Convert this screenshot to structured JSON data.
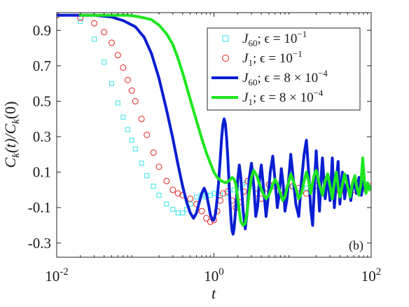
{
  "chart_data": {
    "type": "line",
    "x_scale": "log",
    "xlim": [
      0.01,
      100
    ],
    "ylim": [
      -0.38,
      1.0
    ],
    "grid": false,
    "legend_position": "top-right",
    "panel_label": "(b)",
    "xlabel": "t",
    "ylabel": "C_k(t)/C_k(0)",
    "x_ticks": [
      {
        "value": 0.01,
        "base": "10",
        "exp": "-2"
      },
      {
        "value": 1,
        "base": "10",
        "exp": "0"
      },
      {
        "value": 100,
        "base": "10",
        "exp": "2"
      }
    ],
    "y_ticks": [
      {
        "value": 0.9,
        "label": "0.9"
      },
      {
        "value": 0.7,
        "label": "0.7"
      },
      {
        "value": 0.5,
        "label": "0.5"
      },
      {
        "value": 0.3,
        "label": "0.3"
      },
      {
        "value": 0.1,
        "label": "0.1"
      },
      {
        "value": -0.1,
        "label": "-0.1"
      },
      {
        "value": -0.3,
        "label": "-0.3"
      }
    ],
    "series": [
      {
        "name": "J60; ε = 10^-1",
        "legend": {
          "sym": "J",
          "sub": "60",
          "text": "; ϵ = 10",
          "sup": "−1"
        },
        "style": "marker-square",
        "color": "#33e6e6",
        "points": [
          [
            0.01,
            0.985
          ],
          [
            0.02,
            0.95
          ],
          [
            0.03,
            0.85
          ],
          [
            0.04,
            0.72
          ],
          [
            0.05,
            0.6
          ],
          [
            0.06,
            0.49
          ],
          [
            0.07,
            0.41
          ],
          [
            0.08,
            0.34
          ],
          [
            0.09,
            0.28
          ],
          [
            0.1,
            0.23
          ],
          [
            0.12,
            0.15
          ],
          [
            0.14,
            0.08
          ],
          [
            0.17,
            0.02
          ],
          [
            0.2,
            -0.03
          ],
          [
            0.25,
            -0.08
          ],
          [
            0.3,
            -0.11
          ],
          [
            0.35,
            -0.13
          ],
          [
            0.4,
            -0.13
          ],
          [
            0.45,
            -0.11
          ],
          [
            0.5,
            -0.08
          ],
          [
            0.6,
            -0.04
          ],
          [
            0.7,
            -0.03
          ],
          [
            0.8,
            -0.04
          ],
          [
            0.9,
            -0.03
          ],
          [
            1.0,
            -0.02
          ],
          [
            1.2,
            -0.03
          ],
          [
            1.5,
            -0.02
          ],
          [
            1.8,
            0.0
          ],
          [
            2.0,
            0.01
          ],
          [
            2.3,
            0.03
          ],
          [
            2.6,
            0.04
          ],
          [
            3.0,
            0.02
          ],
          [
            3.5,
            0.0
          ],
          [
            4.0,
            0.02
          ],
          [
            5.0,
            0.03
          ],
          [
            6.0,
            0.02
          ],
          [
            8.0,
            0.01
          ],
          [
            10,
            0.02
          ],
          [
            15,
            0.01
          ],
          [
            20,
            0.0
          ],
          [
            30,
            0.02
          ],
          [
            50,
            0.01
          ],
          [
            70,
            0.02
          ],
          [
            100,
            0.01
          ]
        ]
      },
      {
        "name": "J1; ε = 10^-1",
        "legend": {
          "sym": "J",
          "sub": "1",
          "text": "; ϵ = 10",
          "sup": "−1"
        },
        "style": "marker-circle",
        "color": "#e62020",
        "points": [
          [
            0.01,
            0.985
          ],
          [
            0.02,
            0.97
          ],
          [
            0.03,
            0.94
          ],
          [
            0.04,
            0.89
          ],
          [
            0.05,
            0.83
          ],
          [
            0.06,
            0.76
          ],
          [
            0.07,
            0.69
          ],
          [
            0.08,
            0.62
          ],
          [
            0.09,
            0.56
          ],
          [
            0.1,
            0.5
          ],
          [
            0.12,
            0.4
          ],
          [
            0.14,
            0.31
          ],
          [
            0.17,
            0.21
          ],
          [
            0.2,
            0.13
          ],
          [
            0.25,
            0.05
          ],
          [
            0.3,
            0.0
          ],
          [
            0.35,
            -0.02
          ],
          [
            0.4,
            -0.03
          ],
          [
            0.5,
            -0.05
          ],
          [
            0.6,
            -0.08
          ],
          [
            0.7,
            -0.12
          ],
          [
            0.8,
            -0.16
          ],
          [
            0.9,
            -0.18
          ],
          [
            1.0,
            -0.17
          ],
          [
            1.1,
            -0.12
          ],
          [
            1.2,
            -0.06
          ],
          [
            1.3,
            -0.02
          ],
          [
            1.5,
            -0.01
          ],
          [
            1.7,
            -0.06
          ],
          [
            1.9,
            -0.1
          ],
          [
            2.1,
            -0.07
          ],
          [
            2.4,
            -0.01
          ],
          [
            2.7,
            0.05
          ],
          [
            3.0,
            0.04
          ],
          [
            3.5,
            -0.02
          ],
          [
            4.0,
            -0.05
          ],
          [
            4.5,
            -0.02
          ],
          [
            5.0,
            0.03
          ],
          [
            6.0,
            0.02
          ],
          [
            7.0,
            -0.03
          ],
          [
            8.0,
            -0.01
          ],
          [
            10,
            0.02
          ],
          [
            12,
            0.01
          ],
          [
            15,
            -0.02
          ],
          [
            20,
            0.02
          ],
          [
            25,
            -0.01
          ],
          [
            30,
            0.02
          ],
          [
            40,
            -0.01
          ],
          [
            50,
            0.02
          ],
          [
            60,
            0.0
          ],
          [
            70,
            0.02
          ],
          [
            80,
            0.01
          ],
          [
            100,
            0.02
          ]
        ]
      },
      {
        "name": "J60; ε = 8 × 10^-4",
        "legend": {
          "sym": "J",
          "sub": "60",
          "text": "; ϵ = 8 × 10",
          "sup": "−4"
        },
        "style": "line",
        "color": "#0a1ed2",
        "points": [
          [
            0.01,
            0.985
          ],
          [
            0.03,
            0.985
          ],
          [
            0.05,
            0.975
          ],
          [
            0.07,
            0.955
          ],
          [
            0.1,
            0.92
          ],
          [
            0.13,
            0.86
          ],
          [
            0.16,
            0.77
          ],
          [
            0.2,
            0.63
          ],
          [
            0.25,
            0.45
          ],
          [
            0.3,
            0.29
          ],
          [
            0.35,
            0.14
          ],
          [
            0.4,
            0.02
          ],
          [
            0.45,
            -0.07
          ],
          [
            0.5,
            -0.13
          ],
          [
            0.55,
            -0.16
          ],
          [
            0.6,
            -0.13
          ],
          [
            0.65,
            -0.07
          ],
          [
            0.7,
            -0.02
          ],
          [
            0.75,
            0.01
          ],
          [
            0.8,
            -0.02
          ],
          [
            0.85,
            -0.08
          ],
          [
            0.9,
            -0.14
          ],
          [
            0.95,
            -0.17
          ],
          [
            1.0,
            -0.17
          ],
          [
            1.05,
            -0.13
          ],
          [
            1.1,
            -0.05
          ],
          [
            1.15,
            0.05
          ],
          [
            1.2,
            0.17
          ],
          [
            1.25,
            0.29
          ],
          [
            1.3,
            0.37
          ],
          [
            1.35,
            0.4
          ],
          [
            1.4,
            0.37
          ],
          [
            1.45,
            0.29
          ],
          [
            1.5,
            0.18
          ],
          [
            1.55,
            0.05
          ],
          [
            1.6,
            -0.07
          ],
          [
            1.65,
            -0.17
          ],
          [
            1.7,
            -0.23
          ],
          [
            1.75,
            -0.25
          ],
          [
            1.8,
            -0.22
          ],
          [
            1.9,
            -0.1
          ],
          [
            2.0,
            0.05
          ],
          [
            2.1,
            0.14
          ],
          [
            2.2,
            0.07
          ],
          [
            2.35,
            -0.12
          ],
          [
            2.5,
            -0.22
          ],
          [
            2.65,
            -0.12
          ],
          [
            2.8,
            0.06
          ],
          [
            3.0,
            0.15
          ],
          [
            3.2,
            0.03
          ],
          [
            3.4,
            -0.15
          ],
          [
            3.6,
            -0.09
          ],
          [
            3.8,
            0.06
          ],
          [
            4.0,
            0.14
          ],
          [
            4.3,
            0.0
          ],
          [
            4.6,
            -0.15
          ],
          [
            4.9,
            -0.04
          ],
          [
            5.2,
            0.1
          ],
          [
            5.6,
            0.19
          ],
          [
            6.0,
            0.05
          ],
          [
            6.4,
            -0.1
          ],
          [
            6.8,
            -0.02
          ],
          [
            7.2,
            0.12
          ],
          [
            7.6,
            0.03
          ],
          [
            8.0,
            -0.12
          ],
          [
            8.5,
            -0.05
          ],
          [
            9.0,
            0.08
          ],
          [
            9.5,
            0.2
          ],
          [
            10,
            0.1
          ],
          [
            11,
            -0.08
          ],
          [
            12,
            -0.15
          ],
          [
            13,
            0.05
          ],
          [
            14,
            0.2
          ],
          [
            15,
            0.28
          ],
          [
            16,
            0.1
          ],
          [
            17,
            -0.1
          ],
          [
            18,
            -0.2
          ],
          [
            19,
            0.03
          ],
          [
            20,
            0.22
          ],
          [
            21,
            0.05
          ],
          [
            22,
            -0.12
          ],
          [
            23,
            0.06
          ],
          [
            24,
            0.18
          ],
          [
            26,
            -0.05
          ],
          [
            28,
            0.08
          ],
          [
            30,
            -0.06
          ],
          [
            32,
            0.18
          ],
          [
            34,
            -0.1
          ],
          [
            36,
            0.05
          ],
          [
            38,
            0.16
          ],
          [
            40,
            -0.08
          ],
          [
            43,
            0.1
          ],
          [
            46,
            -0.05
          ],
          [
            50,
            0.08
          ],
          [
            55,
            -0.06
          ],
          [
            60,
            0.06
          ],
          [
            65,
            -0.02
          ],
          [
            70,
            0.07
          ],
          [
            75,
            -0.03
          ],
          [
            80,
            0.05
          ],
          [
            85,
            -0.01
          ],
          [
            90,
            0.03
          ],
          [
            100,
            0.01
          ]
        ]
      },
      {
        "name": "J1; ε = 8 × 10^-4",
        "legend": {
          "sym": "J",
          "sub": "1",
          "text": "; ϵ = 8 × 10",
          "sup": "−4"
        },
        "style": "line",
        "color": "#1ee61e",
        "points": [
          [
            0.02,
            0.985
          ],
          [
            0.05,
            0.985
          ],
          [
            0.08,
            0.985
          ],
          [
            0.1,
            0.98
          ],
          [
            0.13,
            0.97
          ],
          [
            0.16,
            0.96
          ],
          [
            0.2,
            0.93
          ],
          [
            0.25,
            0.88
          ],
          [
            0.3,
            0.82
          ],
          [
            0.35,
            0.74
          ],
          [
            0.4,
            0.66
          ],
          [
            0.5,
            0.51
          ],
          [
            0.6,
            0.39
          ],
          [
            0.7,
            0.29
          ],
          [
            0.8,
            0.21
          ],
          [
            0.9,
            0.15
          ],
          [
            1.0,
            0.1
          ],
          [
            1.1,
            0.07
          ],
          [
            1.25,
            0.05
          ],
          [
            1.4,
            0.04
          ],
          [
            1.55,
            0.05
          ],
          [
            1.7,
            0.07
          ],
          [
            1.8,
            0.06
          ],
          [
            1.9,
            0.03
          ],
          [
            2.0,
            -0.04
          ],
          [
            2.1,
            -0.12
          ],
          [
            2.2,
            -0.18
          ],
          [
            2.35,
            -0.2
          ],
          [
            2.5,
            -0.19
          ],
          [
            2.65,
            -0.12
          ],
          [
            2.8,
            -0.02
          ],
          [
            3.0,
            0.07
          ],
          [
            3.2,
            0.11
          ],
          [
            3.5,
            0.08
          ],
          [
            3.8,
            0.03
          ],
          [
            4.2,
            -0.02
          ],
          [
            4.6,
            -0.05
          ],
          [
            5.0,
            -0.03
          ],
          [
            5.5,
            0.02
          ],
          [
            6.0,
            0.06
          ],
          [
            6.5,
            0.03
          ],
          [
            7.0,
            -0.02
          ],
          [
            7.5,
            -0.06
          ],
          [
            8.0,
            -0.04
          ],
          [
            8.5,
            0.01
          ],
          [
            9.0,
            0.05
          ],
          [
            9.5,
            0.09
          ],
          [
            10,
            0.06
          ],
          [
            11,
            0.01
          ],
          [
            12,
            -0.05
          ],
          [
            13,
            -0.02
          ],
          [
            14,
            0.05
          ],
          [
            15,
            0.1
          ],
          [
            16,
            0.05
          ],
          [
            17,
            -0.02
          ],
          [
            18,
            0.04
          ],
          [
            19,
            0.09
          ],
          [
            20,
            0.11
          ],
          [
            22,
            0.03
          ],
          [
            24,
            -0.03
          ],
          [
            26,
            0.05
          ],
          [
            28,
            0.09
          ],
          [
            30,
            0.02
          ],
          [
            32,
            -0.05
          ],
          [
            34,
            0.04
          ],
          [
            36,
            0.1
          ],
          [
            38,
            0.02
          ],
          [
            40,
            -0.04
          ],
          [
            43,
            0.03
          ],
          [
            46,
            0.09
          ],
          [
            50,
            0.02
          ],
          [
            54,
            -0.04
          ],
          [
            58,
            0.04
          ],
          [
            62,
            0.08
          ],
          [
            66,
            0.01
          ],
          [
            70,
            -0.03
          ],
          [
            74,
            0.03
          ],
          [
            78,
            0.18
          ],
          [
            82,
            0.05
          ],
          [
            86,
            -0.02
          ],
          [
            90,
            0.04
          ],
          [
            95,
            0.0
          ],
          [
            100,
            0.02
          ]
        ]
      }
    ]
  }
}
